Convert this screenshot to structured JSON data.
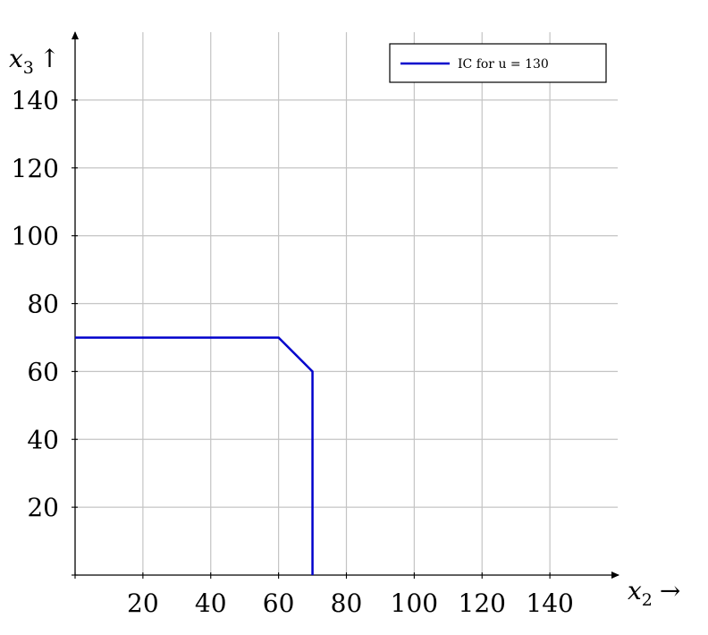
{
  "chart_data": {
    "type": "line",
    "xlabel": "x2 →",
    "ylabel": "x3 ↑",
    "xlabel_parts": {
      "var": "x",
      "sub": "2",
      "arrow": "→"
    },
    "ylabel_parts": {
      "var": "x",
      "sub": "3",
      "arrow": "↑"
    },
    "xlim": [
      0,
      160
    ],
    "ylim": [
      0,
      160
    ],
    "xticks": [
      20,
      40,
      60,
      80,
      100,
      120,
      140
    ],
    "yticks": [
      20,
      40,
      60,
      80,
      100,
      120,
      140
    ],
    "xtick_labels": [
      "20",
      "40",
      "60",
      "80",
      "100",
      "120",
      "140"
    ],
    "ytick_labels": [
      "20",
      "40",
      "60",
      "80",
      "100",
      "120",
      "140"
    ],
    "grid": true,
    "legend_position": "top-right",
    "legend_text": "IC for u = 130",
    "series": [
      {
        "name": "IC for u = 130",
        "color": "#0000cc",
        "x": [
          0,
          60,
          70,
          70
        ],
        "y": [
          70,
          70,
          60,
          0
        ]
      }
    ]
  }
}
